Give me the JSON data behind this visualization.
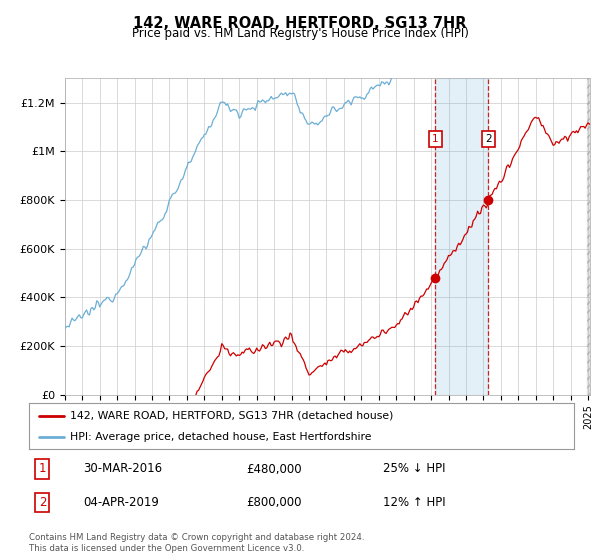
{
  "title": "142, WARE ROAD, HERTFORD, SG13 7HR",
  "subtitle": "Price paid vs. HM Land Registry's House Price Index (HPI)",
  "ylim": [
    0,
    1300000
  ],
  "yticks": [
    0,
    200000,
    400000,
    600000,
    800000,
    1000000,
    1200000
  ],
  "ytick_labels": [
    "£0",
    "£200K",
    "£400K",
    "£600K",
    "£800K",
    "£1M",
    "£1.2M"
  ],
  "hpi_color": "#6baed6",
  "price_color": "#cc0000",
  "sale1_year": 2016.25,
  "sale1_price": 480000,
  "sale2_year": 2019.27,
  "sale2_price": 800000,
  "legend_line1": "142, WARE ROAD, HERTFORD, SG13 7HR (detached house)",
  "legend_line2": "HPI: Average price, detached house, East Hertfordshire",
  "table_row1": [
    "1",
    "30-MAR-2016",
    "£480,000",
    "25% ↓ HPI"
  ],
  "table_row2": [
    "2",
    "04-APR-2019",
    "£800,000",
    "12% ↑ HPI"
  ],
  "footer": "Contains HM Land Registry data © Crown copyright and database right 2024.\nThis data is licensed under the Open Government Licence v3.0.",
  "background_color": "#ffffff",
  "grid_color": "#cccccc"
}
